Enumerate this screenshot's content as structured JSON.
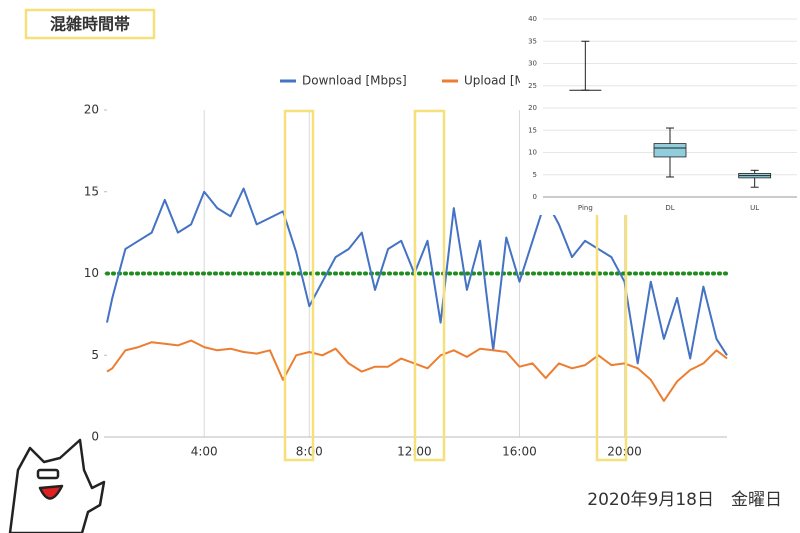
{
  "header": {
    "title": "混雑時間帯"
  },
  "footer": {
    "date": "2020年9月18日　金曜日"
  },
  "chart_data": [
    {
      "type": "line",
      "xlim": [
        0.3,
        23.9
      ],
      "xticks": [
        {
          "value": 4,
          "label": "4:00"
        },
        {
          "value": 8,
          "label": "8:00"
        },
        {
          "value": 12,
          "label": "12:00"
        },
        {
          "value": 16,
          "label": "16:00"
        },
        {
          "value": 20,
          "label": "20:00"
        }
      ],
      "ylim": [
        0,
        20
      ],
      "yticks": [
        0,
        5,
        10,
        15,
        20
      ],
      "grid": "x",
      "reference_line": {
        "value": 10,
        "color": "#1e8c1e"
      },
      "x": [
        0.3,
        0.5,
        1,
        1.5,
        2,
        2.5,
        3,
        3.5,
        4,
        4.5,
        5,
        5.5,
        6,
        6.5,
        7,
        7.5,
        8,
        8.5,
        9,
        9.5,
        10,
        10.5,
        11,
        11.5,
        12,
        12.5,
        13,
        13.5,
        14,
        14.5,
        15,
        15.5,
        16,
        16.5,
        17,
        17.5,
        18,
        18.5,
        19,
        19.5,
        20,
        20.5,
        21,
        21.5,
        22,
        22.5,
        23,
        23.5,
        23.9
      ],
      "series": [
        {
          "name": "Download [Mbps]",
          "color": "#4472c4",
          "values": [
            7,
            8.5,
            11.5,
            12,
            12.5,
            14.5,
            12.5,
            13,
            15,
            14,
            13.5,
            15.2,
            13,
            13.4,
            13.8,
            11.3,
            8,
            9.5,
            11,
            11.5,
            12.5,
            9,
            11.5,
            12,
            10,
            12,
            7,
            14,
            9,
            12,
            5.3,
            12.2,
            9.5,
            12,
            14.5,
            13,
            11,
            12,
            11.5,
            11,
            9.5,
            4.5,
            9.5,
            6,
            8.5,
            4.8,
            9.2,
            6,
            5
          ]
        },
        {
          "name": "Upload [Mbps]",
          "color": "#ed7d31",
          "values": [
            4,
            4.2,
            5.3,
            5.5,
            5.8,
            5.7,
            5.6,
            5.9,
            5.5,
            5.3,
            5.4,
            5.2,
            5.1,
            5.3,
            3.5,
            5,
            5.2,
            5,
            5.4,
            4.5,
            4,
            4.3,
            4.3,
            4.8,
            4.5,
            4.2,
            5,
            5.3,
            4.9,
            5.4,
            5.3,
            5.2,
            4.3,
            4.5,
            3.6,
            4.5,
            4.2,
            4.4,
            5,
            4.4,
            4.5,
            4.2,
            3.5,
            2.2,
            3.4,
            4.1,
            4.5,
            5.3,
            4.8
          ]
        }
      ]
    },
    {
      "type": "box",
      "categories": [
        "Ping",
        "DL",
        "UL"
      ],
      "ylim": [
        0,
        40
      ],
      "yticks": [
        0,
        5,
        10,
        15,
        20,
        25,
        30,
        35,
        40
      ],
      "color": "#92cddc",
      "stats": [
        {
          "min": 24,
          "q1": 24,
          "median": 24,
          "q3": 24,
          "max": 35
        },
        {
          "min": 4.5,
          "q1": 9,
          "median": 11,
          "q3": 12,
          "max": 15.5
        },
        {
          "min": 2.2,
          "q1": 4.3,
          "median": 4.8,
          "q3": 5.3,
          "max": 6
        }
      ]
    }
  ]
}
